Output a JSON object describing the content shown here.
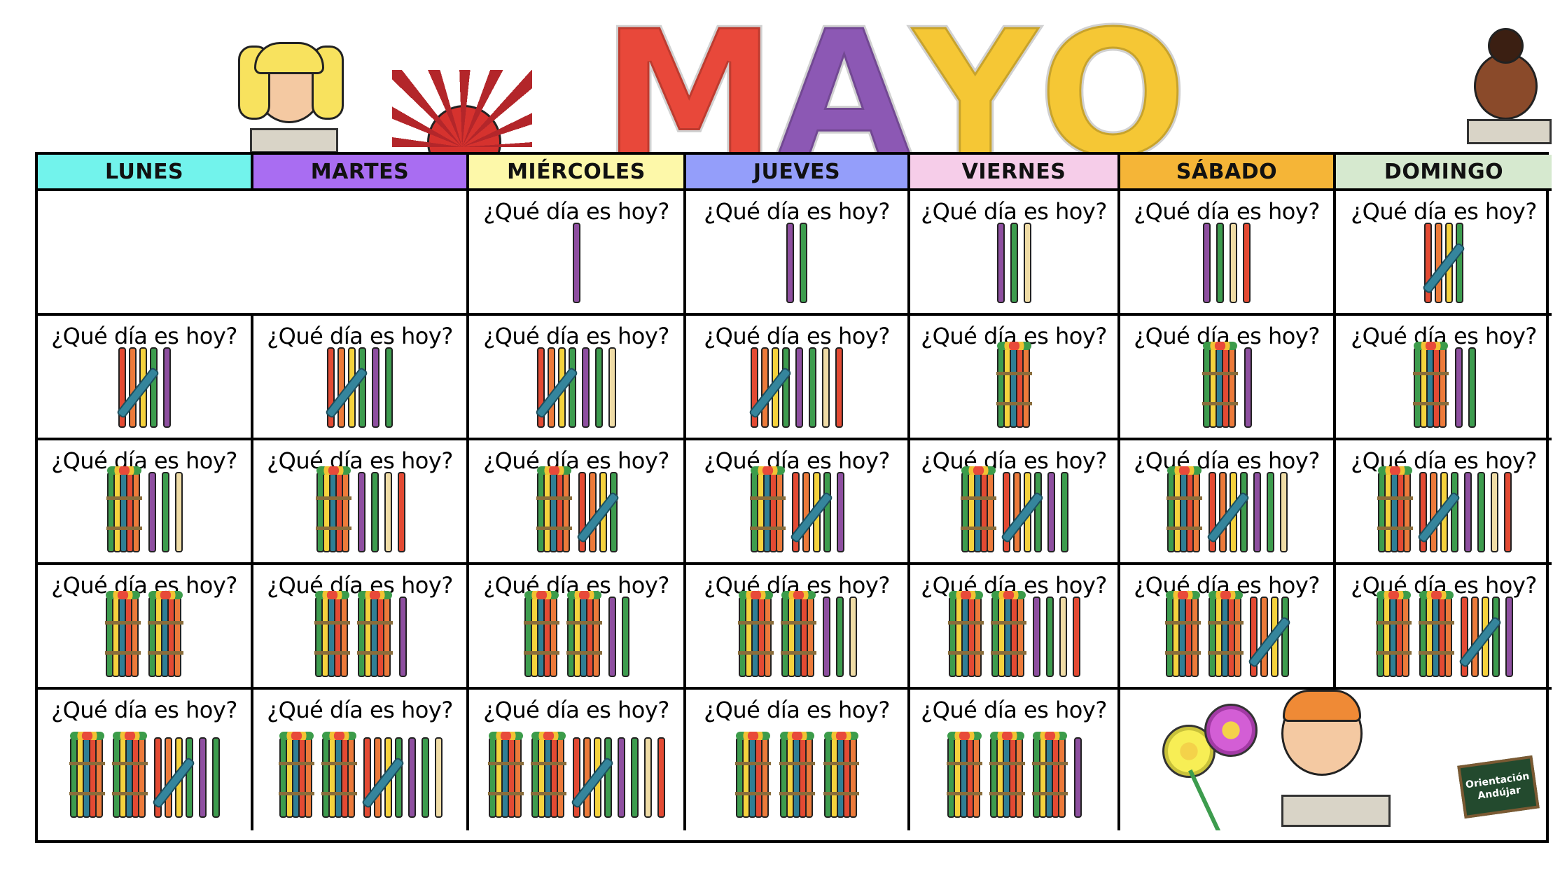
{
  "title": {
    "letters": [
      "M",
      "A",
      "Y",
      "O"
    ],
    "colors": [
      "#e8483a",
      "#8c58b4",
      "#f5c735",
      "#f5c735"
    ]
  },
  "days": [
    {
      "label": "LUNES",
      "color": "#72f3ec"
    },
    {
      "label": "MARTES",
      "color": "#a96df2"
    },
    {
      "label": "MIÉRCOLES",
      "color": "#fdf8a9"
    },
    {
      "label": "JUEVES",
      "color": "#949efa"
    },
    {
      "label": "VIERNES",
      "color": "#f6cde9"
    },
    {
      "label": "SÁBADO",
      "color": "#f5b537"
    },
    {
      "label": "DOMINGO",
      "color": "#d6e9cf"
    }
  ],
  "question": "¿Qué día es hoy?",
  "stick_colors": {
    "red": "#e34a33",
    "orange": "#ec7a3a",
    "yellow": "#f5d23d",
    "green": "#3d9c4e",
    "beige": "#efdca6",
    "purple": "#8e4fa0",
    "teal": "#2f7f95"
  },
  "weeks": [
    [
      null,
      null,
      1,
      2,
      3,
      4,
      5
    ],
    [
      6,
      7,
      8,
      9,
      10,
      11,
      12
    ],
    [
      13,
      14,
      15,
      16,
      17,
      18,
      19
    ],
    [
      20,
      21,
      22,
      23,
      24,
      25,
      26
    ],
    [
      27,
      28,
      29,
      30,
      31,
      "deco",
      "deco"
    ]
  ],
  "logo": {
    "line1": "Orientación",
    "line2": "Andújar"
  }
}
